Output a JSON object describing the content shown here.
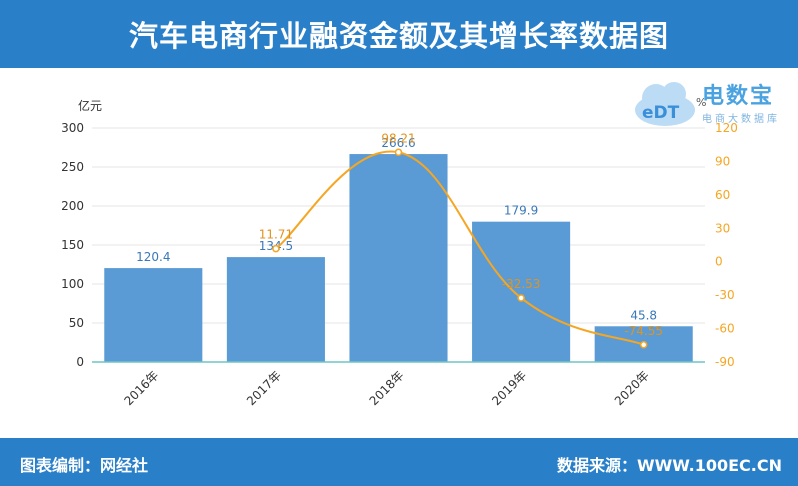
{
  "header": {
    "title": "汽车电商行业融资金额及其增长率数据图"
  },
  "footer": {
    "left": "图表编制：网经社",
    "right": "数据来源：WWW.100EC.CN"
  },
  "logo": {
    "name": "电数宝",
    "sub": "电商大数据库",
    "cloud_text": "eDT",
    "pct": "%"
  },
  "chart_data": {
    "type": "bar",
    "categories": [
      "2016年",
      "2017年",
      "2018年",
      "2019年",
      "2020年"
    ],
    "series": [
      {
        "type": "bar",
        "axis": "left",
        "values": [
          120.4,
          134.5,
          266.6,
          179.9,
          45.8
        ],
        "color": "#5b9bd5"
      },
      {
        "type": "line",
        "axis": "right",
        "values": [
          null,
          11.71,
          98.21,
          -32.53,
          -74.55
        ],
        "color": "#f5a623"
      }
    ],
    "ylabel": "亿元",
    "ylim": [
      0,
      300
    ],
    "yticks": [
      0,
      50,
      100,
      150,
      200,
      250,
      300
    ],
    "y2label": "%",
    "y2lim": [
      -90,
      120
    ],
    "y2ticks": [
      -90,
      -60,
      -30,
      0,
      30,
      60,
      90,
      120
    ],
    "grid": true,
    "colors": {
      "header": "#2a7fc9",
      "bar": "#5b9bd5",
      "line": "#f5a623",
      "grid": "#e6e6e6"
    }
  }
}
